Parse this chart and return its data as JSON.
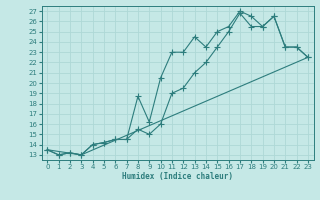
{
  "xlabel": "Humidex (Indice chaleur)",
  "xlim": [
    -0.5,
    23.5
  ],
  "ylim": [
    12.5,
    27.5
  ],
  "xticks": [
    0,
    1,
    2,
    3,
    4,
    5,
    6,
    7,
    8,
    9,
    10,
    11,
    12,
    13,
    14,
    15,
    16,
    17,
    18,
    19,
    20,
    21,
    22,
    23
  ],
  "yticks": [
    13,
    14,
    15,
    16,
    17,
    18,
    19,
    20,
    21,
    22,
    23,
    24,
    25,
    26,
    27
  ],
  "background_color": "#c5e8e6",
  "grid_color": "#aed8d6",
  "line_color": "#2d7d7d",
  "line1_x": [
    0,
    1,
    2,
    3,
    4,
    5,
    6,
    7,
    8,
    9,
    10,
    11,
    12,
    13,
    14,
    15,
    16,
    17,
    18,
    19,
    20,
    21,
    22,
    23
  ],
  "line1_y": [
    13.5,
    13.0,
    13.2,
    13.0,
    14.0,
    14.2,
    14.5,
    14.5,
    18.7,
    16.2,
    20.5,
    23.0,
    23.0,
    24.5,
    23.5,
    25.0,
    25.5,
    27.0,
    26.5,
    25.5,
    26.5,
    23.5,
    23.5,
    22.5
  ],
  "line2_x": [
    0,
    1,
    2,
    3,
    4,
    5,
    6,
    7,
    8,
    9,
    10,
    11,
    12,
    13,
    14,
    15,
    16,
    17,
    18,
    19,
    20,
    21,
    22,
    23
  ],
  "line2_y": [
    13.5,
    13.0,
    13.2,
    13.0,
    14.0,
    14.2,
    14.5,
    14.5,
    15.5,
    15.0,
    16.0,
    19.0,
    19.5,
    21.0,
    22.0,
    23.5,
    25.0,
    26.8,
    25.5,
    25.5,
    26.5,
    23.5,
    23.5,
    22.5
  ],
  "line3_x": [
    0,
    3,
    23
  ],
  "line3_y": [
    13.5,
    13.0,
    22.5
  ],
  "marker_size": 2.0,
  "line_width": 0.8,
  "tick_labelsize": 5,
  "xlabel_fontsize": 5.5
}
